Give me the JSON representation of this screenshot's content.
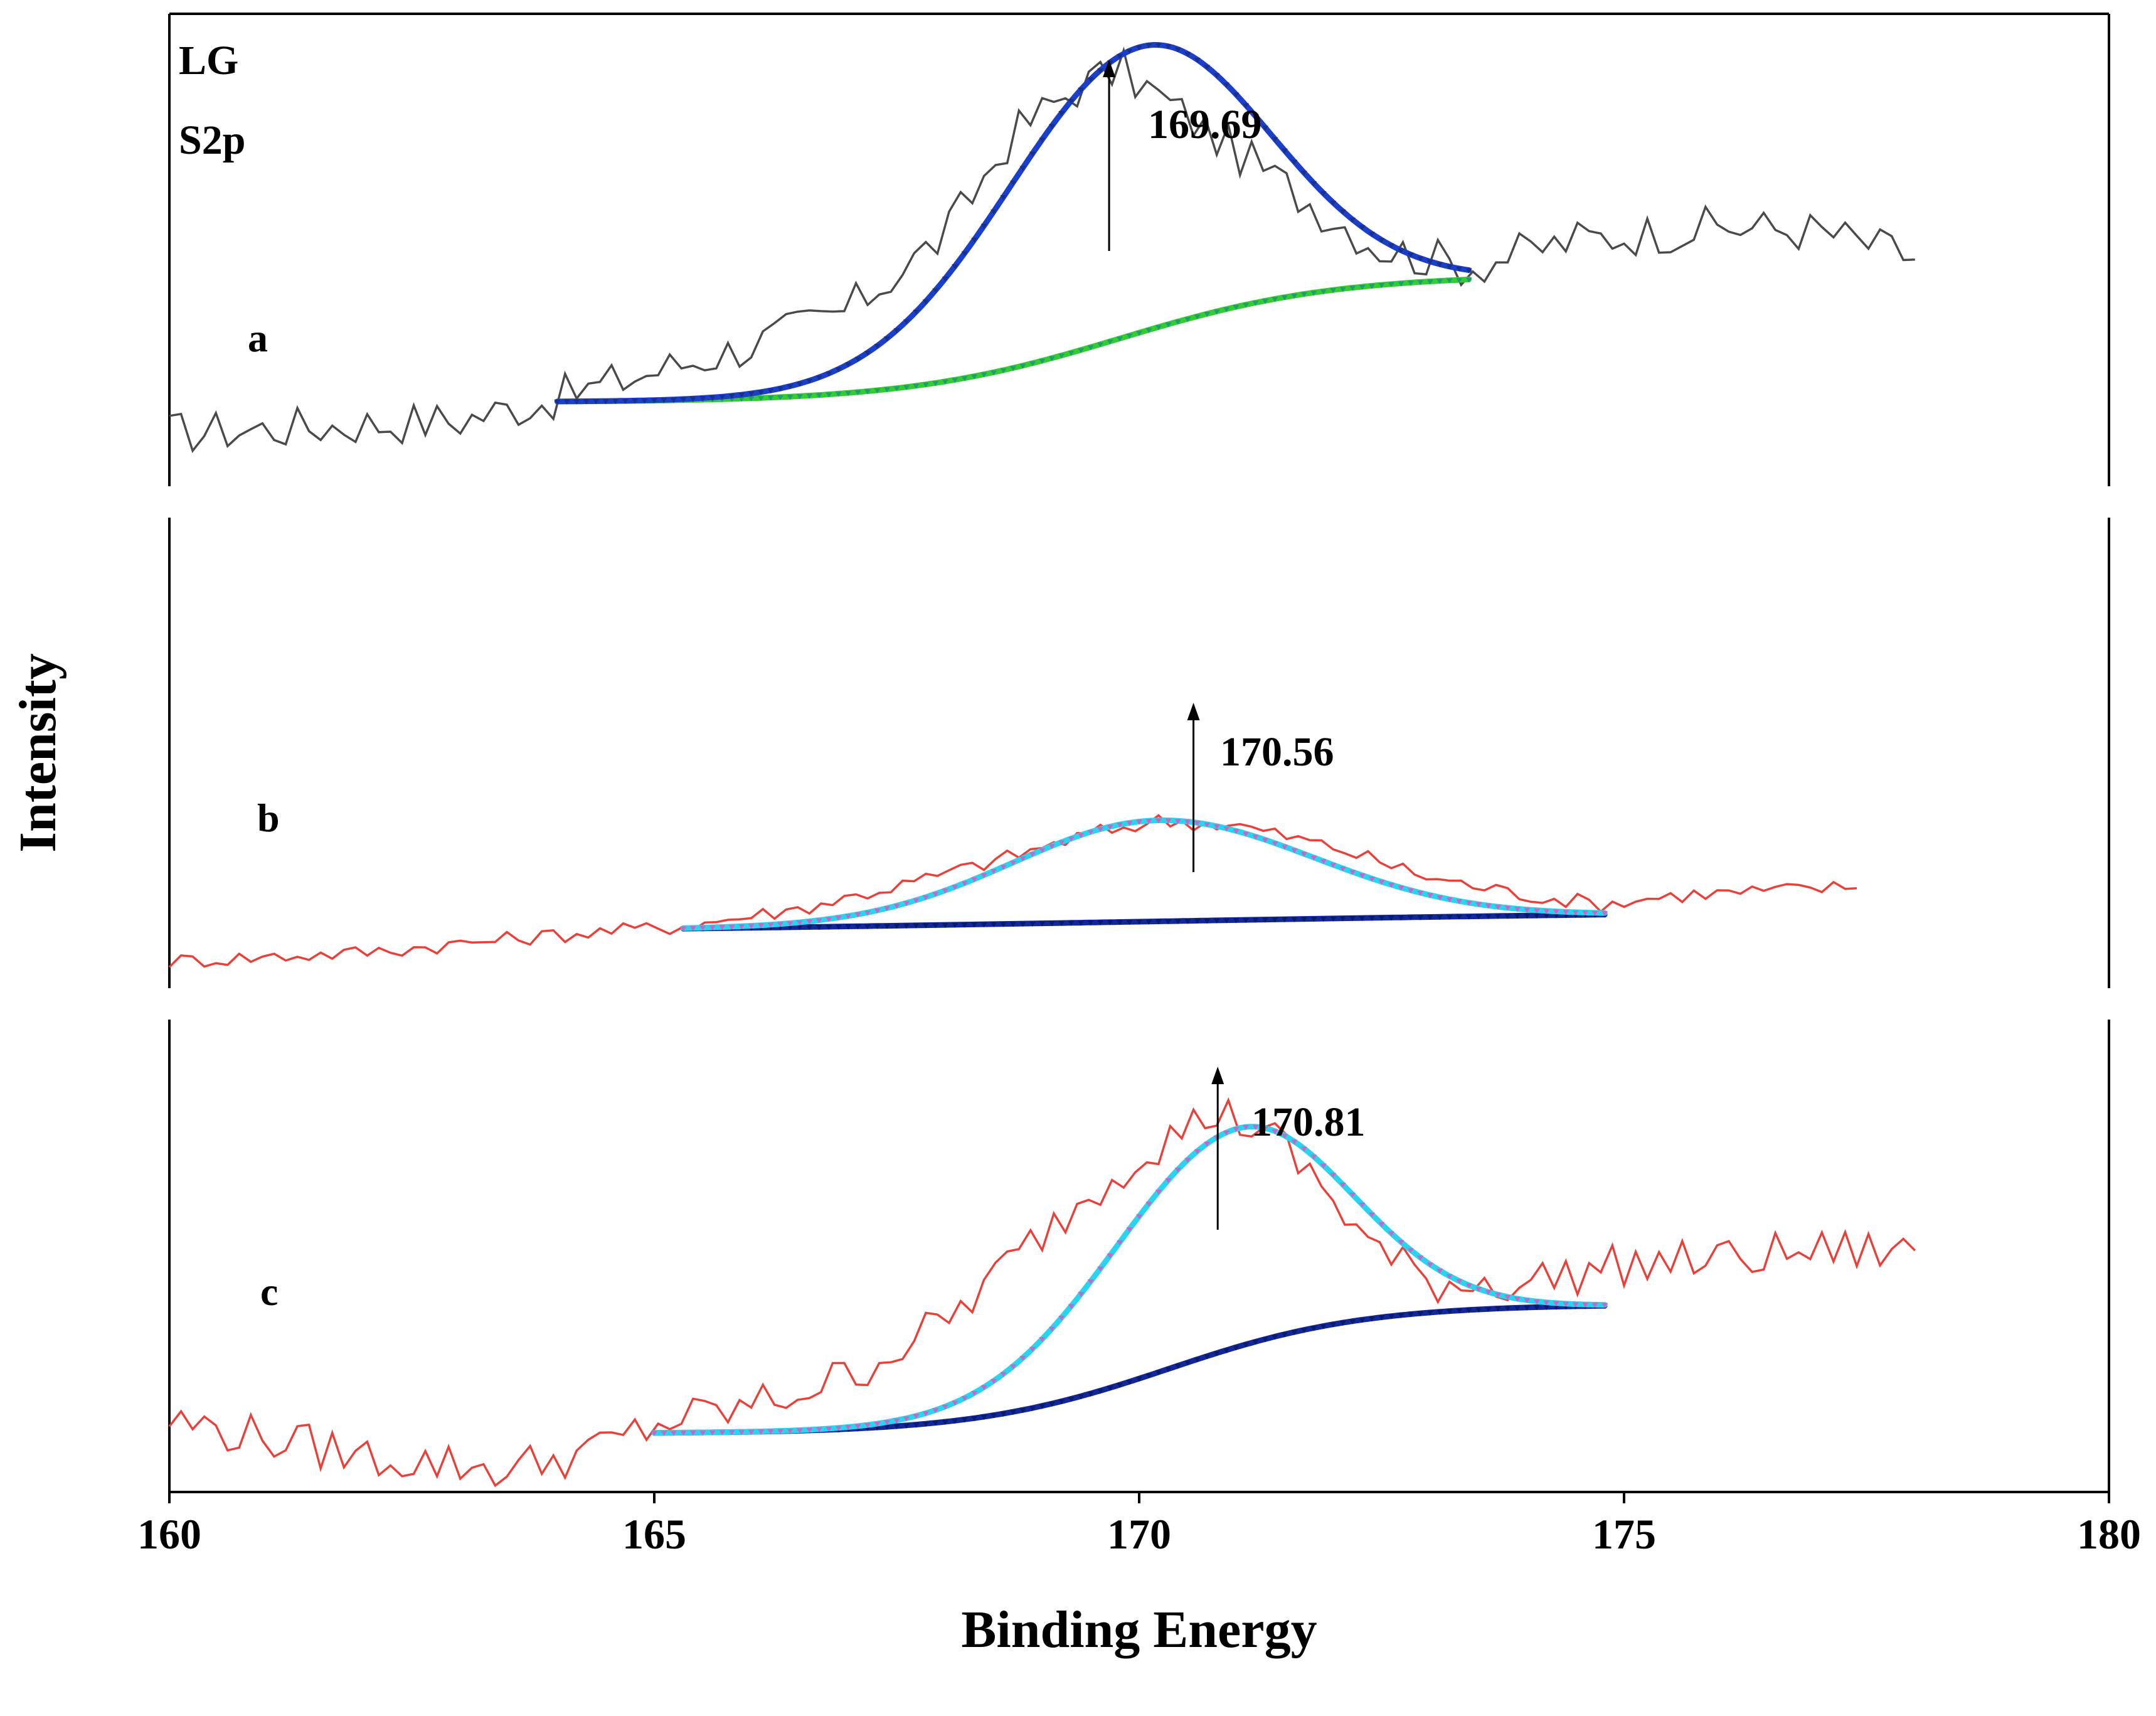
{
  "chart_data": {
    "type": "line",
    "xlabel": "Binding Energy",
    "ylabel": "Intensity",
    "xlim": [
      160,
      180
    ],
    "x_ticks": [
      160,
      165,
      170,
      175,
      180
    ],
    "corner_labels": [
      "LG",
      "S2p"
    ],
    "colors": {
      "raw_a": "#4a4a4a",
      "raw_bc": "#e8413a",
      "fit_a": "#1a3fc9",
      "bg_a": "#33cc33",
      "fit_bc": "#2ad4f0",
      "bg_bc": "#12289a"
    },
    "panels": [
      {
        "label": "a",
        "peak_label": "169.69",
        "peak_x": 169.69,
        "ylim": [
          0,
          1
        ],
        "raw_range": [
          160,
          178
        ],
        "raw_base": [
          [
            160,
            0.1
          ],
          [
            163,
            0.13
          ],
          [
            164,
            0.18
          ],
          [
            165,
            0.24
          ],
          [
            166,
            0.3
          ],
          [
            167,
            0.38
          ],
          [
            168,
            0.55
          ],
          [
            168.7,
            0.78
          ],
          [
            169.3,
            0.88
          ],
          [
            169.8,
            0.93
          ],
          [
            170.3,
            0.85
          ],
          [
            171,
            0.74
          ],
          [
            171.8,
            0.62
          ],
          [
            172.5,
            0.52
          ],
          [
            173.4,
            0.48
          ],
          [
            174.5,
            0.54
          ],
          [
            176,
            0.57
          ],
          [
            177,
            0.56
          ],
          [
            178,
            0.5
          ]
        ],
        "fit_range": [
          164,
          173.4
        ],
        "fit": {
          "amp": 0.65,
          "center": 170.0,
          "sigma_left": 1.4,
          "sigma_right": 1.3
        },
        "background": {
          "start": 0.17,
          "end": 0.46,
          "center": 169.8,
          "width": 1.1
        }
      },
      {
        "label": "b",
        "peak_label": "170.56",
        "peak_x": 170.56,
        "ylim": [
          0,
          1
        ],
        "raw_range": [
          160,
          177.4
        ],
        "raw_base": [
          [
            160,
            0.04
          ],
          [
            162,
            0.06
          ],
          [
            164,
            0.1
          ],
          [
            165.3,
            0.12
          ],
          [
            166.5,
            0.16
          ],
          [
            167.5,
            0.21
          ],
          [
            168.7,
            0.28
          ],
          [
            169.5,
            0.33
          ],
          [
            170.2,
            0.36
          ],
          [
            171,
            0.35
          ],
          [
            172,
            0.3
          ],
          [
            173,
            0.23
          ],
          [
            174,
            0.19
          ],
          [
            174.8,
            0.17
          ],
          [
            175.5,
            0.19
          ],
          [
            176.5,
            0.2
          ],
          [
            177.4,
            0.21
          ]
        ],
        "fit_range": [
          165.3,
          174.8
        ],
        "fit": {
          "amp": 0.23,
          "center": 170.2,
          "sigma_left": 1.5,
          "sigma_right": 1.6
        },
        "background": {
          "start": 0.1,
          "end": 0.16,
          "center": 170.0,
          "width": 4.0
        }
      },
      {
        "label": "c",
        "peak_label": "170.81",
        "peak_x": 170.81,
        "ylim": [
          0,
          1
        ],
        "raw_range": [
          160,
          178
        ],
        "raw_base": [
          [
            160,
            0.15
          ],
          [
            162,
            0.07
          ],
          [
            163.5,
            0.04
          ],
          [
            164.5,
            0.09
          ],
          [
            165,
            0.14
          ],
          [
            166,
            0.18
          ],
          [
            167,
            0.25
          ],
          [
            168,
            0.37
          ],
          [
            169,
            0.57
          ],
          [
            170,
            0.75
          ],
          [
            170.8,
            0.84
          ],
          [
            171.3,
            0.8
          ],
          [
            171.9,
            0.67
          ],
          [
            172.5,
            0.52
          ],
          [
            173,
            0.46
          ],
          [
            174,
            0.46
          ],
          [
            175,
            0.5
          ],
          [
            176,
            0.51
          ],
          [
            177,
            0.53
          ],
          [
            178,
            0.53
          ]
        ],
        "fit_range": [
          165,
          174.8
        ],
        "fit": {
          "amp": 0.49,
          "center": 171.0,
          "sigma_left": 1.3,
          "sigma_right": 1.15
        },
        "background": {
          "start": 0.12,
          "end": 0.41,
          "center": 170.3,
          "width": 1.0
        }
      }
    ]
  }
}
